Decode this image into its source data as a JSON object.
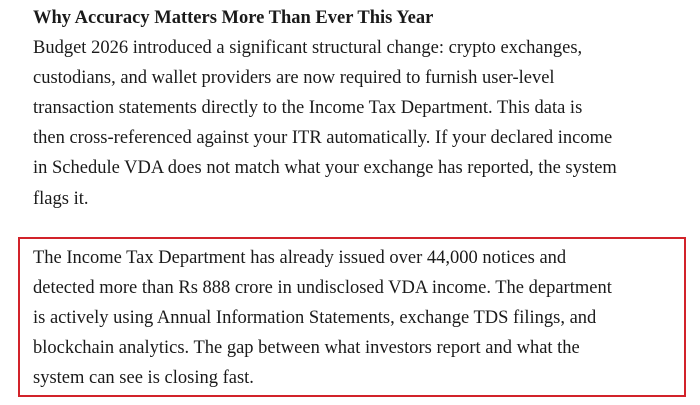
{
  "section": {
    "heading": "Why Accuracy Matters More Than Ever This Year",
    "paragraph_lines": [
      "Budget 2026 introduced a significant structural change: crypto exchanges,",
      "custodians, and wallet providers are now required to furnish user-level",
      "transaction statements directly to the Income Tax Department. This data is",
      "then cross-referenced against your ITR automatically. If your declared income",
      "in Schedule VDA does not match what your exchange has reported, the system",
      "flags it."
    ],
    "highlight_lines": [
      "The Income Tax Department has already issued over 44,000 notices and",
      "detected more than Rs 888 crore in undisclosed VDA income. The department",
      "is actively using Annual Information Statements, exchange TDS filings, and",
      "blockchain analytics. The gap between what investors report and what the",
      "system can see is closing fast."
    ]
  }
}
